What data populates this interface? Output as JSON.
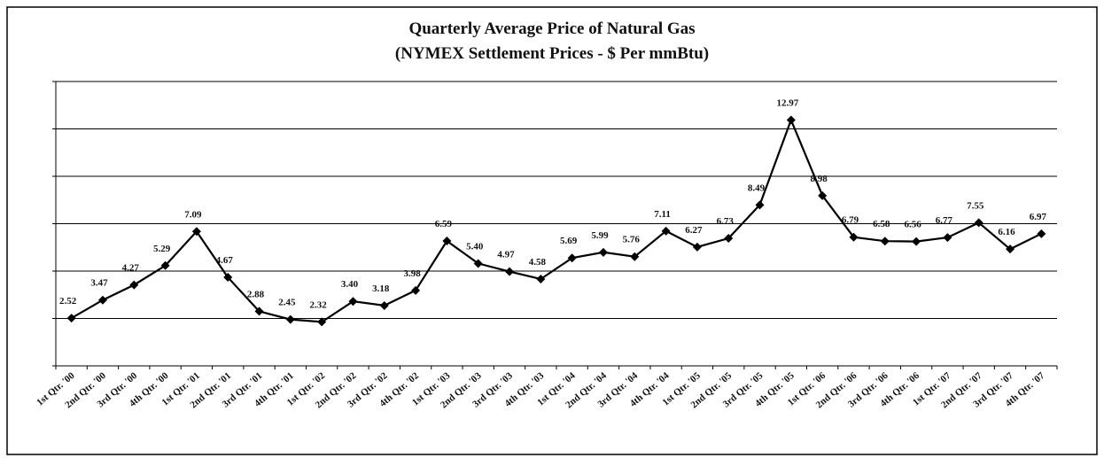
{
  "chart_data": {
    "type": "line",
    "title": "Quarterly Average Price of Natural Gas",
    "subtitle": "(NYMEX Settlement Prices - $ Per mmBtu)",
    "categories": [
      "1st Qtr. '00",
      "2nd Qtr. '00",
      "3rd Qtr. '00",
      "4th Qtr. '00",
      "1st Qtr. '01",
      "2nd Qtr. '01",
      "3rd Qtr. '01",
      "4th Qtr. '01",
      "1st Qtr. '02",
      "2nd Qtr. '02",
      "3rd Qtr. '02",
      "4th Qtr. '02",
      "1st Qtr. '03",
      "2nd Qtr. '03",
      "3rd Qtr. '03",
      "4th Qtr. '03",
      "1st Qtr. '04",
      "2nd Qtr. '04",
      "3rd Qtr. '04",
      "4th Qtr. '04",
      "1st Qtr. '05",
      "2nd Qtr. '05",
      "3rd Qtr. '05",
      "4th Qtr. '05",
      "1st Qtr. '06",
      "2nd Qtr. '06",
      "3rd Qtr. '06",
      "4th Qtr. '06",
      "1st Qtr. '07",
      "2nd Qtr. '07",
      "3rd Qtr. '07",
      "4th Qtr. '07"
    ],
    "values": [
      2.52,
      3.47,
      4.27,
      5.29,
      7.09,
      4.67,
      2.88,
      2.45,
      2.32,
      3.4,
      3.18,
      3.98,
      6.59,
      5.4,
      4.97,
      4.58,
      5.69,
      5.99,
      5.76,
      7.11,
      6.27,
      6.73,
      8.49,
      12.97,
      8.98,
      6.79,
      6.58,
      6.56,
      6.77,
      7.55,
      6.16,
      6.97
    ],
    "value_labels": [
      "2.52",
      "3.47",
      "4.27",
      "5.29",
      "7.09",
      "4.67",
      "2.88",
      "2.45",
      "2.32",
      "3.40",
      "3.18",
      "3.98",
      "6.59",
      "5.40",
      "4.97",
      "4.58",
      "5.69",
      "5.99",
      "5.76",
      "7.11",
      "6.27",
      "6.73",
      "8.49",
      "12.97",
      "8.98",
      "6.79",
      "6.58",
      "6.56",
      "6.77",
      "7.55",
      "6.16",
      "6.97"
    ],
    "color": "#000000",
    "ylim": [
      0,
      15
    ],
    "yticks": [
      0,
      2.5,
      5,
      7.5,
      10,
      12.5,
      15
    ],
    "grid": true
  }
}
